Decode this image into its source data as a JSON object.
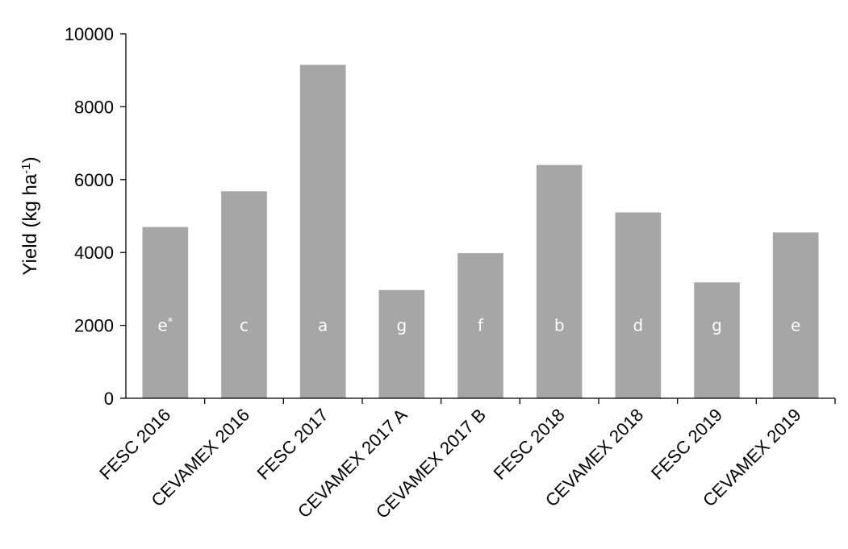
{
  "chart_data": {
    "type": "bar",
    "title": "",
    "xlabel": "",
    "ylabel": "Yield (kg ha",
    "ylabel_sup": "-1",
    "ylabel_close": ")",
    "ylim": [
      0,
      10000
    ],
    "yticks": [
      0,
      2000,
      4000,
      6000,
      8000,
      10000
    ],
    "grid": false,
    "legend": "none",
    "bar_color": "#a6a6a6",
    "categories": [
      "FESC 2016",
      "CEVAMEX 2016",
      "FESC 2017",
      "CEVAMEX 2017 A",
      "CEVAMEX 2017 B",
      "FESC 2018",
      "CEVAMEX 2018",
      "FESC 2019",
      "CEVAMEX 2019"
    ],
    "values": [
      4700,
      5680,
      9150,
      2970,
      3980,
      6400,
      5100,
      3180,
      4550
    ],
    "bar_labels": [
      "e",
      "c",
      "a",
      "g",
      "f",
      "b",
      "d",
      "g",
      "e"
    ],
    "bar_label_sups": [
      "*",
      "",
      "",
      "",
      "",
      "",
      "",
      "",
      ""
    ]
  }
}
